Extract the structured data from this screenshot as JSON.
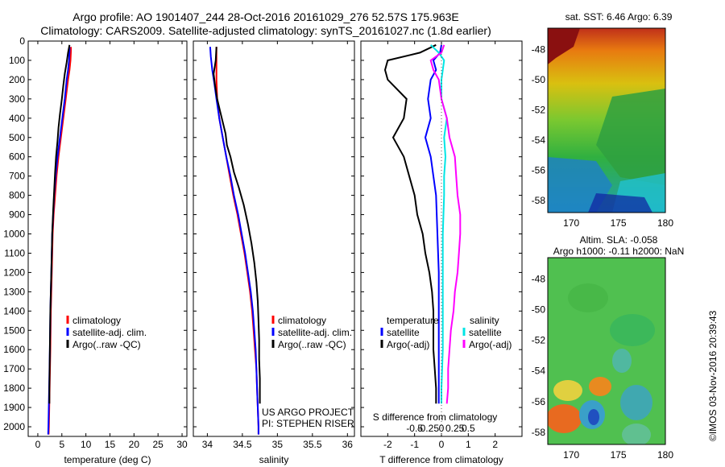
{
  "header": {
    "title_line1": "Argo profile: AO 1901407_244 28-Oct-2016 20161029_276 52.57S 175.963E",
    "title_line2": "Climatology: CARS2009. Satellite-adjusted climatology: synTS_20161027.nc (1.8d earlier)"
  },
  "credit": "©IMOS 03-Nov-2016 20:39:43",
  "colors": {
    "climatology": "#ff0000",
    "satellite": "#0000ff",
    "argo": "#000000",
    "s_satellite": "#00e5e5",
    "s_argo": "#ff00ff",
    "zero_line": "#555555"
  },
  "chart_data": [
    {
      "id": "temperature",
      "type": "line",
      "xlabel": "temperature (deg C)",
      "xlim": [
        -2,
        31
      ],
      "ylim": [
        2050,
        0
      ],
      "xticks": [
        0,
        5,
        10,
        15,
        20,
        25,
        30
      ],
      "yticks": [
        0,
        100,
        200,
        300,
        400,
        500,
        600,
        700,
        800,
        900,
        1000,
        1100,
        1200,
        1300,
        1400,
        1500,
        1600,
        1700,
        1800,
        1900,
        2000
      ],
      "legend": [
        "climatology",
        "satellite-adj. clim.",
        "Argo(..raw -QC)"
      ],
      "series": [
        {
          "name": "climatology",
          "color": "#ff0000",
          "points": [
            [
              6.9,
              30
            ],
            [
              6.9,
              50
            ],
            [
              6.8,
              100
            ],
            [
              6.6,
              150
            ],
            [
              6.3,
              200
            ],
            [
              5.8,
              300
            ],
            [
              5.3,
              400
            ],
            [
              4.8,
              500
            ],
            [
              4.3,
              600
            ],
            [
              3.9,
              700
            ],
            [
              3.6,
              800
            ],
            [
              3.3,
              900
            ],
            [
              3.1,
              1000
            ],
            [
              2.9,
              1200
            ],
            [
              2.7,
              1400
            ],
            [
              2.6,
              1600
            ],
            [
              2.45,
              1800
            ],
            [
              2.3,
              2000
            ],
            [
              2.25,
              2040
            ]
          ]
        },
        {
          "name": "satellite-adj. clim.",
          "color": "#0000ff",
          "points": [
            [
              6.6,
              30
            ],
            [
              6.6,
              50
            ],
            [
              6.5,
              100
            ],
            [
              6.3,
              150
            ],
            [
              6.0,
              200
            ],
            [
              5.6,
              300
            ],
            [
              5.1,
              400
            ],
            [
              4.6,
              500
            ],
            [
              4.1,
              600
            ],
            [
              3.7,
              700
            ],
            [
              3.4,
              800
            ],
            [
              3.2,
              900
            ],
            [
              3.0,
              1000
            ],
            [
              2.8,
              1200
            ],
            [
              2.6,
              1400
            ],
            [
              2.5,
              1600
            ],
            [
              2.35,
              1800
            ],
            [
              2.2,
              2000
            ],
            [
              2.15,
              2040
            ]
          ]
        },
        {
          "name": "Argo(..raw -QC)",
          "color": "#000000",
          "points": [
            [
              6.6,
              20
            ],
            [
              6.3,
              60
            ],
            [
              6.0,
              110
            ],
            [
              5.6,
              170
            ],
            [
              5.3,
              230
            ],
            [
              5.0,
              300
            ],
            [
              4.6,
              380
            ],
            [
              4.3,
              450
            ],
            [
              4.1,
              520
            ],
            [
              3.8,
              600
            ],
            [
              3.6,
              680
            ],
            [
              3.4,
              780
            ],
            [
              3.2,
              880
            ],
            [
              3.0,
              1000
            ],
            [
              2.9,
              1100
            ],
            [
              2.8,
              1200
            ],
            [
              2.7,
              1300
            ],
            [
              2.6,
              1400
            ],
            [
              2.55,
              1500
            ],
            [
              2.5,
              1600
            ],
            [
              2.45,
              1700
            ],
            [
              2.4,
              1800
            ],
            [
              2.4,
              1880
            ]
          ]
        }
      ]
    },
    {
      "id": "salinity",
      "type": "line",
      "xlabel": "salinity",
      "xlim": [
        33.8,
        36.1
      ],
      "ylim": [
        2050,
        0
      ],
      "xticks": [
        34,
        34.5,
        35,
        35.5,
        36
      ],
      "legend": [
        "climatology",
        "satellite-adj. clim.",
        "Argo(..raw -QC)"
      ],
      "annotation": [
        "US ARGO PROJECT",
        "PI: STEPHEN RISER"
      ],
      "series": [
        {
          "name": "climatology",
          "color": "#ff0000",
          "points": [
            [
              34.13,
              30
            ],
            [
              34.13,
              100
            ],
            [
              34.13,
              200
            ],
            [
              34.14,
              300
            ],
            [
              34.17,
              400
            ],
            [
              34.22,
              500
            ],
            [
              34.27,
              600
            ],
            [
              34.32,
              700
            ],
            [
              34.37,
              800
            ],
            [
              34.43,
              900
            ],
            [
              34.48,
              1000
            ],
            [
              34.53,
              1100
            ],
            [
              34.57,
              1200
            ],
            [
              34.61,
              1300
            ],
            [
              34.64,
              1400
            ],
            [
              34.66,
              1500
            ],
            [
              34.68,
              1600
            ],
            [
              34.7,
              1700
            ],
            [
              34.71,
              1800
            ],
            [
              34.72,
              1900
            ],
            [
              34.73,
              2000
            ],
            [
              34.73,
              2040
            ]
          ]
        },
        {
          "name": "satellite-adj. clim.",
          "color": "#0000ff",
          "points": [
            [
              34.04,
              30
            ],
            [
              34.05,
              80
            ],
            [
              34.07,
              150
            ],
            [
              34.1,
              220
            ],
            [
              34.13,
              300
            ],
            [
              34.17,
              400
            ],
            [
              34.22,
              500
            ],
            [
              34.27,
              600
            ],
            [
              34.33,
              700
            ],
            [
              34.38,
              800
            ],
            [
              34.44,
              900
            ],
            [
              34.49,
              1000
            ],
            [
              34.54,
              1100
            ],
            [
              34.58,
              1200
            ],
            [
              34.62,
              1300
            ],
            [
              34.65,
              1400
            ],
            [
              34.67,
              1500
            ],
            [
              34.69,
              1600
            ],
            [
              34.7,
              1700
            ],
            [
              34.71,
              1800
            ],
            [
              34.72,
              1900
            ],
            [
              34.73,
              2000
            ],
            [
              34.73,
              2040
            ]
          ]
        },
        {
          "name": "Argo(..raw -QC)",
          "color": "#000000",
          "points": [
            [
              34.13,
              30
            ],
            [
              34.12,
              100
            ],
            [
              34.09,
              170
            ],
            [
              34.11,
              230
            ],
            [
              34.14,
              300
            ],
            [
              34.18,
              360
            ],
            [
              34.22,
              420
            ],
            [
              34.26,
              480
            ],
            [
              34.28,
              540
            ],
            [
              34.33,
              600
            ],
            [
              34.38,
              680
            ],
            [
              34.45,
              760
            ],
            [
              34.52,
              850
            ],
            [
              34.58,
              950
            ],
            [
              34.63,
              1050
            ],
            [
              34.67,
              1150
            ],
            [
              34.7,
              1250
            ],
            [
              34.72,
              1350
            ],
            [
              34.73,
              1450
            ],
            [
              34.74,
              1550
            ],
            [
              34.74,
              1650
            ],
            [
              34.75,
              1750
            ],
            [
              34.75,
              1880
            ]
          ]
        }
      ]
    },
    {
      "id": "difference",
      "type": "line",
      "xlabel": "T difference from climatology",
      "xlabel2": "S difference from climatology",
      "xlim": [
        -3.0,
        3.0
      ],
      "ylim": [
        2050,
        0
      ],
      "xticks": [
        -2,
        -1,
        0,
        1,
        2
      ],
      "xticks_s": [
        -0.5,
        -0.25,
        0,
        0.25,
        0.5
      ],
      "legend_t_title": "temperature",
      "legend_s_title": "salinity",
      "legend": [
        "satellite",
        "Argo(-adj)",
        "satellite",
        "Argo(-adj)"
      ],
      "series": [
        {
          "name": "satellite",
          "group": "temperature",
          "color": "#0000ff",
          "points": [
            [
              0.0,
              20
            ],
            [
              -0.05,
              60
            ],
            [
              -0.3,
              100
            ],
            [
              -0.2,
              150
            ],
            [
              -0.4,
              200
            ],
            [
              -0.5,
              300
            ],
            [
              -0.4,
              400
            ],
            [
              -0.6,
              500
            ],
            [
              -0.4,
              600
            ],
            [
              -0.3,
              700
            ],
            [
              -0.2,
              800
            ],
            [
              -0.15,
              1000
            ],
            [
              -0.1,
              1200
            ],
            [
              -0.1,
              1400
            ],
            [
              -0.1,
              1600
            ],
            [
              -0.1,
              1800
            ],
            [
              -0.1,
              1880
            ]
          ]
        },
        {
          "name": "Argo(-adj)",
          "group": "temperature",
          "color": "#000000",
          "points": [
            [
              -0.2,
              20
            ],
            [
              -0.8,
              60
            ],
            [
              -2.0,
              100
            ],
            [
              -2.1,
              150
            ],
            [
              -2.0,
              200
            ],
            [
              -1.3,
              300
            ],
            [
              -1.4,
              400
            ],
            [
              -1.8,
              500
            ],
            [
              -1.4,
              600
            ],
            [
              -1.2,
              700
            ],
            [
              -1.0,
              800
            ],
            [
              -0.9,
              900
            ],
            [
              -0.7,
              1000
            ],
            [
              -0.6,
              1100
            ],
            [
              -0.45,
              1200
            ],
            [
              -0.35,
              1300
            ],
            [
              -0.3,
              1400
            ],
            [
              -0.3,
              1500
            ],
            [
              -0.3,
              1600
            ],
            [
              -0.25,
              1700
            ],
            [
              -0.2,
              1800
            ],
            [
              -0.2,
              1880
            ]
          ]
        },
        {
          "name": "satellite",
          "group": "salinity",
          "color": "#00e5e5",
          "points": [
            [
              -0.4,
              20
            ],
            [
              -0.1,
              60
            ],
            [
              0.1,
              100
            ],
            [
              0.05,
              150
            ],
            [
              0.0,
              200
            ],
            [
              0.0,
              300
            ],
            [
              0.2,
              400
            ],
            [
              0.1,
              500
            ],
            [
              0.15,
              600
            ],
            [
              0.1,
              700
            ],
            [
              0.1,
              800
            ],
            [
              0.05,
              1000
            ],
            [
              0.05,
              1200
            ],
            [
              0.05,
              1400
            ],
            [
              0.05,
              1600
            ],
            [
              0.0,
              1800
            ],
            [
              0.0,
              1880
            ]
          ]
        },
        {
          "name": "Argo(-adj)",
          "group": "salinity",
          "color": "#ff00ff",
          "points": [
            [
              0.1,
              20
            ],
            [
              0.0,
              60
            ],
            [
              -0.4,
              100
            ],
            [
              -0.3,
              150
            ],
            [
              -0.1,
              200
            ],
            [
              0.0,
              300
            ],
            [
              0.2,
              400
            ],
            [
              0.3,
              500
            ],
            [
              0.5,
              600
            ],
            [
              0.55,
              700
            ],
            [
              0.6,
              800
            ],
            [
              0.7,
              900
            ],
            [
              0.7,
              1000
            ],
            [
              0.65,
              1100
            ],
            [
              0.6,
              1200
            ],
            [
              0.5,
              1300
            ],
            [
              0.45,
              1400
            ],
            [
              0.35,
              1500
            ],
            [
              0.3,
              1600
            ],
            [
              0.25,
              1700
            ],
            [
              0.25,
              1800
            ],
            [
              0.2,
              1880
            ]
          ]
        }
      ]
    },
    {
      "id": "sst_map",
      "type": "heatmap",
      "title": "sat. SST: 6.46 Argo: 6.39",
      "xticks": [
        170,
        175,
        180
      ],
      "yticks": [
        -48,
        -50,
        -52,
        -54,
        -56,
        -58
      ],
      "xlim": [
        167.5,
        180
      ],
      "ylim": [
        -58.8,
        -46.6
      ],
      "marker": [
        176.0,
        -52.6
      ]
    },
    {
      "id": "sla_map",
      "type": "heatmap",
      "title": "Altim. SLA: -0.058",
      "subtitle": "Argo h1000: -0.11 h2000: NaN",
      "xticks": [
        170,
        175,
        180
      ],
      "yticks": [
        -48,
        -50,
        -52,
        -54,
        -56,
        -58
      ],
      "xlim": [
        167.5,
        180
      ],
      "ylim": [
        -58.8,
        -46.6
      ],
      "marker": [
        176.0,
        -52.6
      ]
    }
  ]
}
